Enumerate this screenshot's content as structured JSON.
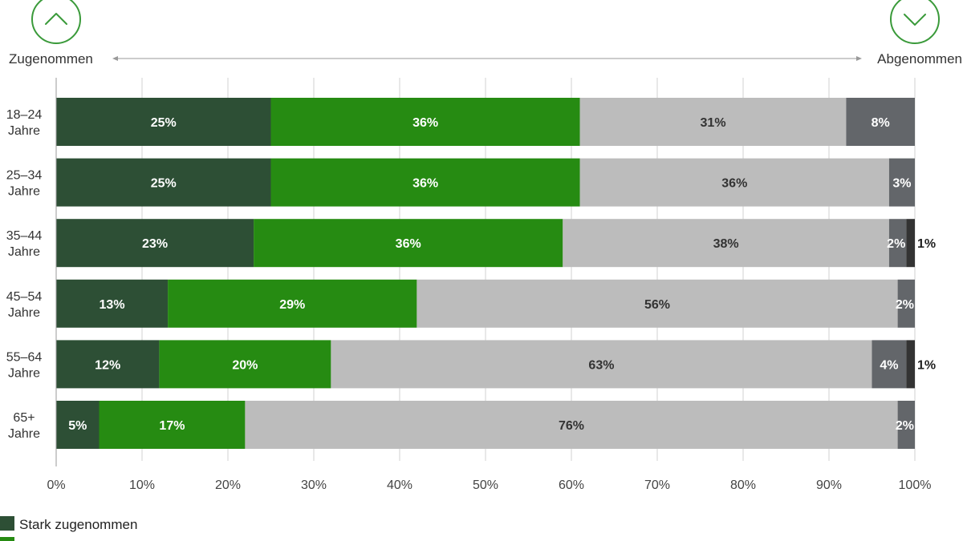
{
  "chart_data": {
    "type": "bar",
    "orientation": "horizontal",
    "stacked": true,
    "direction_labels": {
      "left": "Zugenommen",
      "right": "Abgenommen"
    },
    "icons": {
      "left": "chevron-up-icon",
      "right": "chevron-down-icon"
    },
    "categories": [
      [
        "18–24",
        "Jahre"
      ],
      [
        "25–34",
        "Jahre"
      ],
      [
        "35–44",
        "Jahre"
      ],
      [
        "45–54",
        "Jahre"
      ],
      [
        "55–64",
        "Jahre"
      ],
      [
        "65+",
        "Jahre"
      ]
    ],
    "series": [
      {
        "name": "Stark zugenommen",
        "color": "#2d4f35",
        "label_color": "#ffffff",
        "values": [
          25,
          25,
          23,
          13,
          12,
          5
        ]
      },
      {
        "name": "",
        "color": "#268b12",
        "label_color": "#ffffff",
        "values": [
          36,
          36,
          36,
          29,
          20,
          17
        ]
      },
      {
        "name": "",
        "color": "#bcbcbc",
        "label_color": "#333333",
        "values": [
          31,
          36,
          38,
          56,
          63,
          76
        ]
      },
      {
        "name": "",
        "color": "#63666a",
        "label_color": "#ffffff",
        "values": [
          8,
          3,
          2,
          2,
          4,
          2
        ]
      },
      {
        "name": "",
        "color": "#333333",
        "label_color": "#222222",
        "values": [
          0,
          0,
          1,
          0,
          1,
          0
        ]
      }
    ],
    "value_suffix": "%",
    "xlim": [
      0,
      100
    ],
    "xticks": [
      0,
      10,
      20,
      30,
      40,
      50,
      60,
      70,
      80,
      90,
      100
    ],
    "xtick_labels": [
      "0%",
      "10%",
      "20%",
      "30%",
      "40%",
      "50%",
      "60%",
      "70%",
      "80%",
      "90%",
      "100%"
    ],
    "grid": true,
    "legend": {
      "position": "bottom-left",
      "visible_entries": [
        "Stark zugenommen"
      ]
    }
  }
}
